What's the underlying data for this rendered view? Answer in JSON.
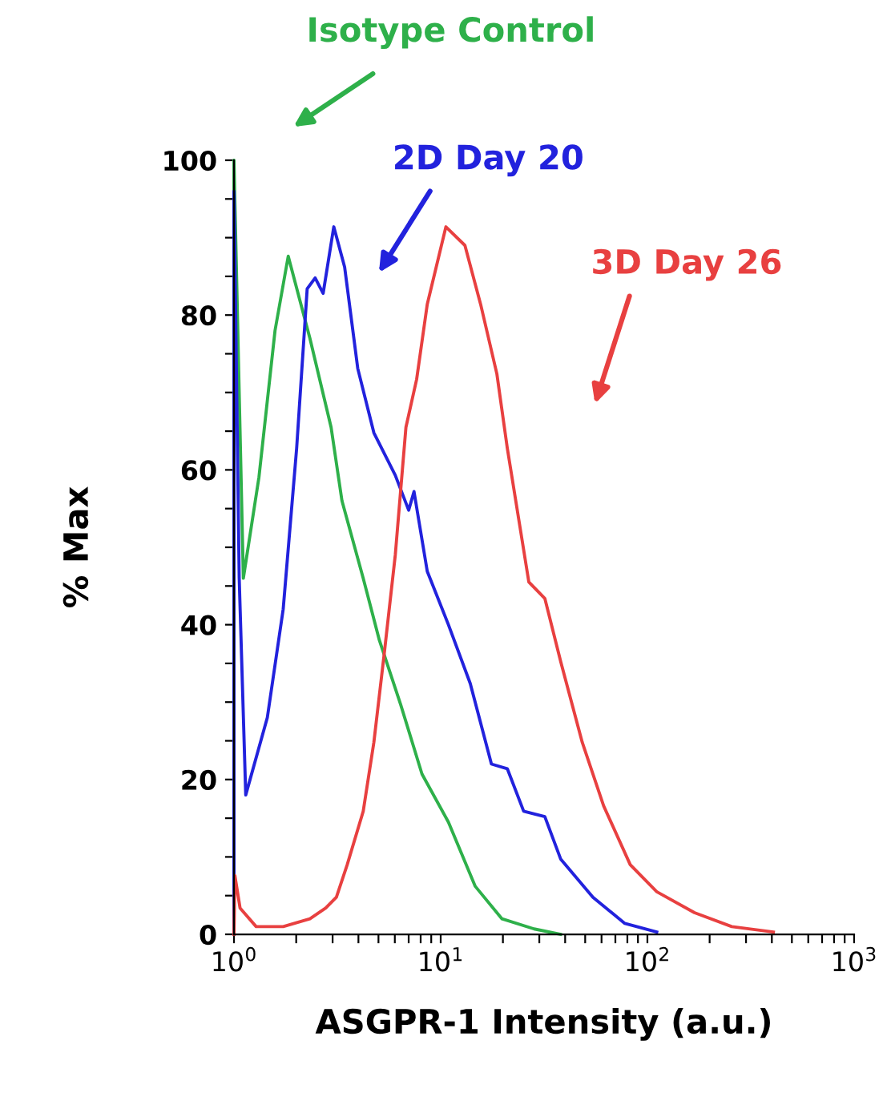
{
  "chart_data": {
    "type": "line",
    "xlabel": "ASGPR-1 Intensity (a.u.)",
    "ylabel": "% Max",
    "log": "x",
    "xlim": [
      1,
      1000
    ],
    "ylim": [
      0,
      100
    ],
    "xticks": [
      {
        "value": 1,
        "label": "10$^{0}$"
      },
      {
        "value": 2,
        "label": null
      },
      {
        "value": 3,
        "label": null
      },
      {
        "value": 4,
        "label": null
      },
      {
        "value": 5,
        "label": null
      },
      {
        "value": 6,
        "label": null
      },
      {
        "value": 7,
        "label": null
      },
      {
        "value": 8,
        "label": null
      },
      {
        "value": 9,
        "label": null
      },
      {
        "value": 10,
        "label": "10$^{1}$"
      },
      {
        "value": 20,
        "label": null
      },
      {
        "value": 30,
        "label": null
      },
      {
        "value": 40,
        "label": null
      },
      {
        "value": 50,
        "label": null
      },
      {
        "value": 60,
        "label": null
      },
      {
        "value": 70,
        "label": null
      },
      {
        "value": 80,
        "label": null
      },
      {
        "value": 90,
        "label": null
      },
      {
        "value": 100,
        "label": "10$^{2}$"
      },
      {
        "value": 200,
        "label": null
      },
      {
        "value": 300,
        "label": null
      },
      {
        "value": 400,
        "label": null
      },
      {
        "value": 500,
        "label": null
      },
      {
        "value": 600,
        "label": null
      },
      {
        "value": 700,
        "label": null
      },
      {
        "value": 800,
        "label": null
      },
      {
        "value": 900,
        "label": null
      },
      {
        "value": 1000,
        "label": "10$^{3}$"
      }
    ],
    "yticks": [
      0,
      {
        "value": 5,
        "label": null
      },
      {
        "value": 10,
        "label": null
      },
      {
        "value": 15,
        "label": null
      },
      20,
      {
        "value": 25,
        "label": null
      },
      {
        "value": 30,
        "label": null
      },
      {
        "value": 35,
        "label": null
      },
      40,
      {
        "value": 45,
        "label": null
      },
      {
        "value": 50,
        "label": null
      },
      {
        "value": 55,
        "label": null
      },
      60,
      {
        "value": 65,
        "label": null
      },
      {
        "value": 70,
        "label": null
      },
      {
        "value": 75,
        "label": null
      },
      80,
      {
        "value": 85,
        "label": null
      },
      {
        "value": 90,
        "label": null
      },
      {
        "value": 95,
        "label": null
      },
      100
    ],
    "grid": false,
    "legend": false,
    "marker": "none",
    "line_style": "solid",
    "series": [
      {
        "name": "Isotype Control",
        "color": "#2eb04a",
        "x": [
          1,
          1,
          1.11,
          1.32,
          1.58,
          1.83,
          2.33,
          2.95,
          3.33,
          4.22,
          5.05,
          6.4,
          8.12,
          10.9,
          14.7,
          19.8,
          28.3,
          38
        ],
        "values": [
          0,
          100,
          46,
          59,
          78,
          87.6,
          77,
          65.5,
          56,
          46,
          38,
          29.7,
          20.7,
          14.5,
          6.2,
          2,
          0.7,
          0
        ]
      },
      {
        "name": "2D Day 20",
        "color": "#2222dd",
        "x": [
          1,
          1,
          1.06,
          1.14,
          1.45,
          1.73,
          2.01,
          2.26,
          2.47,
          2.7,
          3.04,
          3.43,
          3.97,
          4.75,
          6.03,
          7.0,
          7.43,
          8.61,
          10.9,
          13.9,
          17.6,
          21.0,
          25.2,
          31.9,
          38.1,
          54.5,
          77.8,
          111
        ],
        "values": [
          0,
          96,
          46,
          18,
          28,
          42,
          62.8,
          83.4,
          84.8,
          82.8,
          91.4,
          86.2,
          73.1,
          64.8,
          59.3,
          54.8,
          57.2,
          46.9,
          40,
          32.4,
          22,
          21.4,
          15.9,
          15.2,
          9.7,
          4.8,
          1.4,
          0.3
        ]
      },
      {
        "name": "3D Day 26",
        "color": "#e84040",
        "x": [
          1,
          1.01,
          1.07,
          1.28,
          1.73,
          2.33,
          2.78,
          3.13,
          3.53,
          4.22,
          4.75,
          5.35,
          6.03,
          6.79,
          7.65,
          8.61,
          10.6,
          13.1,
          15.6,
          18.7,
          21.0,
          26.7,
          31.9,
          38.1,
          48.4,
          61.4,
          82.6,
          111,
          169,
          256,
          407
        ],
        "values": [
          0,
          7.6,
          3.4,
          1,
          1,
          2,
          3.4,
          4.8,
          9,
          15.9,
          24.8,
          36.6,
          49,
          65.5,
          71.7,
          81.4,
          91.4,
          89,
          81.4,
          72.4,
          62.8,
          45.5,
          43.4,
          35.2,
          24.8,
          16.6,
          9,
          5.5,
          2.8,
          1,
          0.3
        ]
      }
    ]
  }
}
